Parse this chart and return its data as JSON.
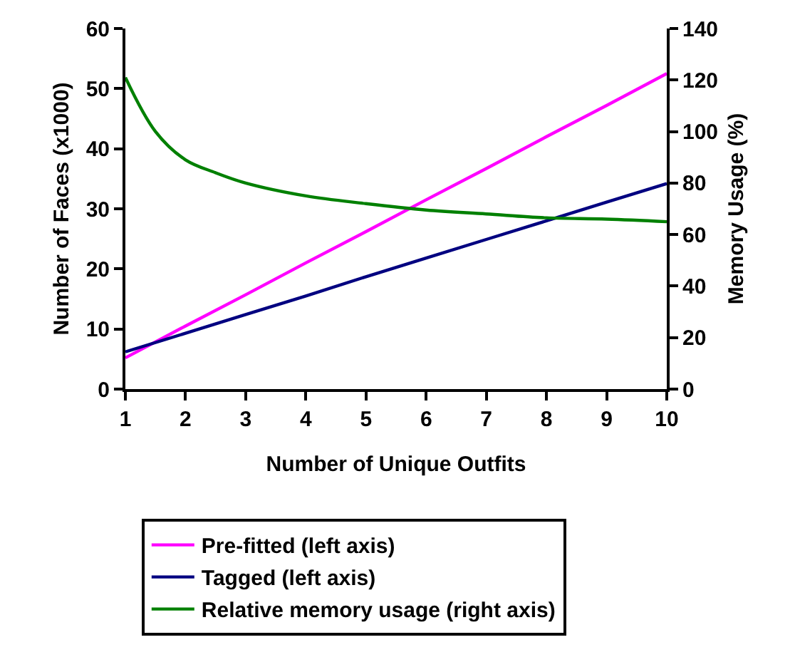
{
  "chart_data": {
    "type": "line",
    "xlabel": "Number of Unique Outfits",
    "ylabel": "Number of Faces (x1000)",
    "y2label": "Memory Usage (%)",
    "x": [
      1,
      2,
      3,
      4,
      5,
      6,
      7,
      8,
      9,
      10
    ],
    "series": [
      {
        "name": "Pre-fitted (left axis)",
        "color": "#ff00ff",
        "values": [
          5.2,
          10.5,
          15.7,
          21,
          26.2,
          31.5,
          36.7,
          42,
          47.2,
          52.5
        ]
      },
      {
        "name": "Tagged (left axis)",
        "color": "#000080",
        "values": [
          6.2,
          9.3,
          12.4,
          15.5,
          18.7,
          21.8,
          24.9,
          28,
          31.1,
          34.2
        ]
      },
      {
        "name": "Relative memory usage (right axis)",
        "color": "#008000",
        "axis": "y2",
        "x": [
          1,
          1.5,
          2,
          2.5,
          3,
          4,
          5,
          6,
          7,
          8,
          9,
          10
        ],
        "values": [
          121,
          100,
          89,
          84,
          80,
          75,
          72,
          69.5,
          68,
          66.5,
          66,
          65
        ]
      }
    ],
    "xlim": [
      1,
      10
    ],
    "xticks": [
      1,
      2,
      3,
      4,
      5,
      6,
      7,
      8,
      9,
      10
    ],
    "ylim": [
      0,
      60
    ],
    "yticks": [
      0,
      10,
      20,
      30,
      40,
      50,
      60
    ],
    "y2lim": [
      0,
      140
    ],
    "y2ticks": [
      0,
      20,
      40,
      60,
      80,
      100,
      120,
      140
    ],
    "legend": "bottom",
    "marker": "none",
    "line_style": "solid"
  }
}
